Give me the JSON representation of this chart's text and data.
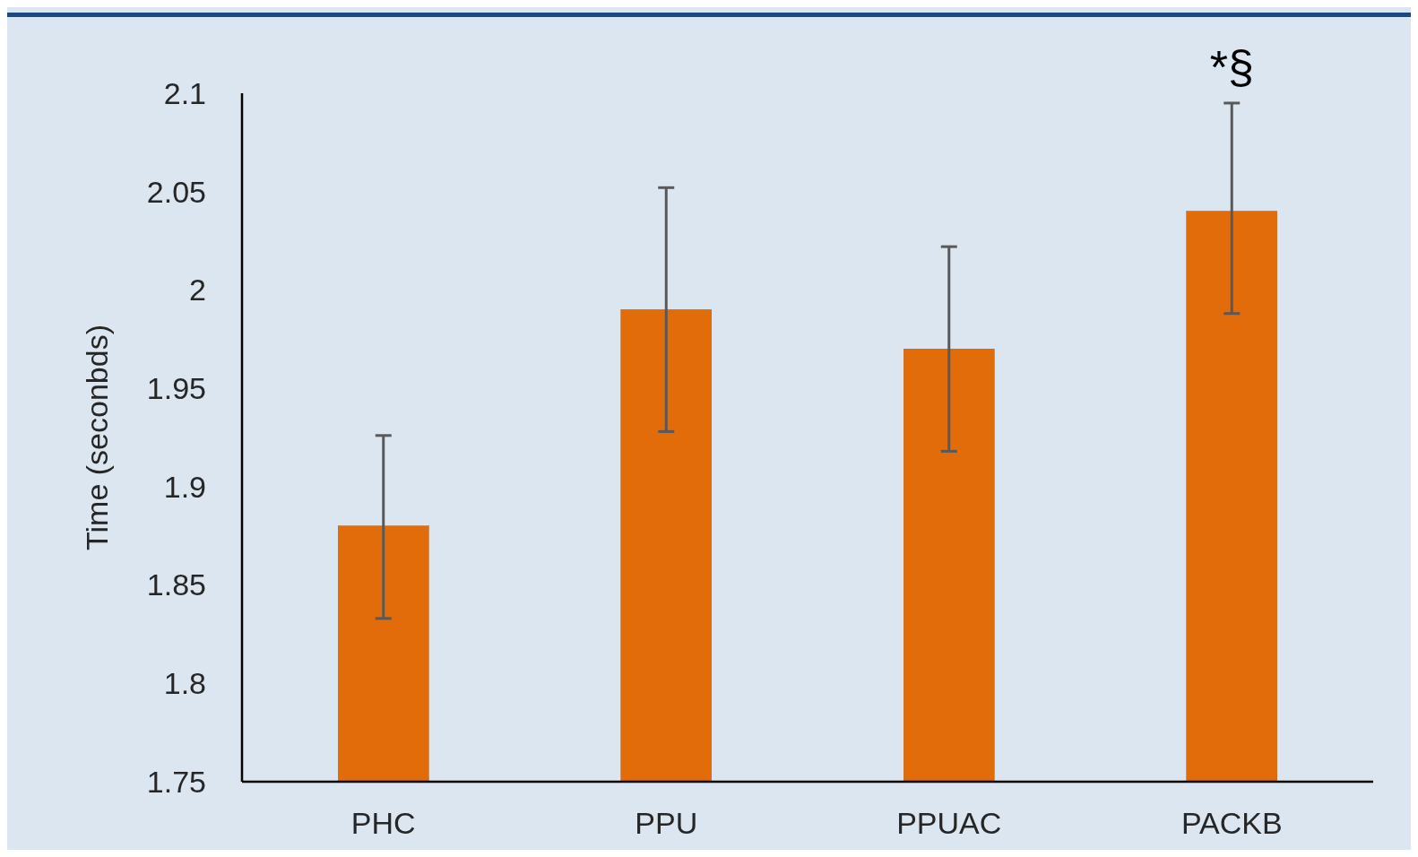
{
  "chart_data": {
    "type": "bar",
    "ylabel": "Time (seconbds)",
    "categories": [
      "PHC",
      "PPU",
      "PPUAC",
      "PACKB"
    ],
    "values": [
      1.88,
      1.99,
      1.97,
      2.04
    ],
    "errors": [
      [
        1.833,
        1.926
      ],
      [
        1.928,
        2.052
      ],
      [
        1.918,
        2.022
      ],
      [
        1.988,
        2.095
      ]
    ],
    "color": "#e36c0a",
    "ylim": [
      1.75,
      2.1
    ],
    "yticks": [
      1.75,
      1.8,
      1.85,
      1.9,
      1.95,
      2,
      2.05,
      2.1
    ],
    "grid": false,
    "annotations": [
      {
        "text": "*§",
        "x": "PACKB",
        "y": 2.095
      }
    ]
  }
}
